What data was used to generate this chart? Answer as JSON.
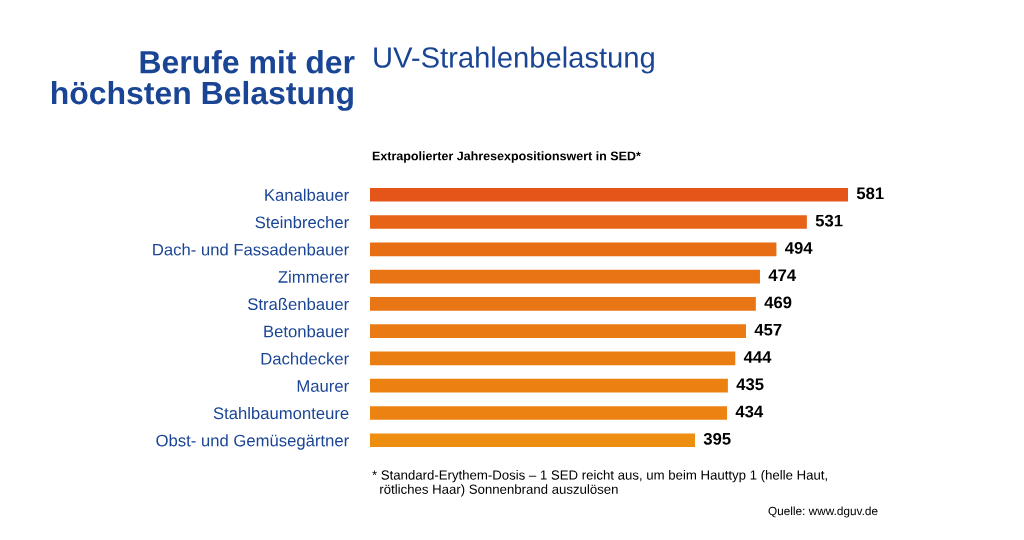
{
  "chart_data": {
    "type": "bar",
    "orientation": "horizontal",
    "title": "Berufe mit der\nhöchsten Belastung",
    "subtitle": "UV-Strahlenbelastung",
    "xlabel": "Extrapolierter Jahresexpositionswert in SED*",
    "categories": [
      "Kanalbauer",
      "Steinbrecher",
      "Dach- und Fassadenbauer",
      "Zimmerer",
      "Straßenbauer",
      "Betonbauer",
      "Dachdecker",
      "Maurer",
      "Stahlbaumonteure",
      "Obst- und Gemüsegärtner"
    ],
    "values": [
      581,
      531,
      494,
      474,
      469,
      457,
      444,
      435,
      434,
      395
    ],
    "colors": [
      "#e4551a",
      "#e66318",
      "#e86e16",
      "#e97415",
      "#e97615",
      "#ea7a14",
      "#eb7e13",
      "#ec8112",
      "#ec8212",
      "#ee8e10"
    ],
    "data_labels": true,
    "annotations": [
      "* Standard-Erythem-Dosis – 1 SED reicht aus, um beim Hauttyp 1 (helle Haut,\n  rötliches Haar) Sonnenbrand auszulösen",
      "Quelle: www.dguv.de"
    ]
  }
}
